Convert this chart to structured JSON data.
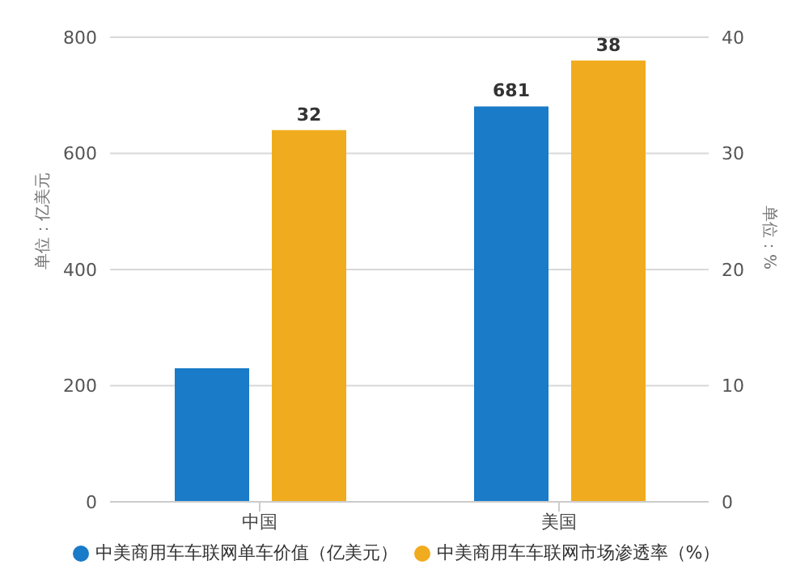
{
  "chart_data": {
    "type": "bar",
    "categories": [
      "中国",
      "美国"
    ],
    "series": [
      {
        "name": "中美商用车车联网单车价值（亿美元）",
        "color": "#1a7bc8",
        "values": [
          230,
          681
        ],
        "value_labels": [
          null,
          "681"
        ]
      },
      {
        "name": "中美商用车车联网市场渗透率（%）",
        "color": "#f0ac1e",
        "values": [
          32,
          38
        ],
        "axis": "y2",
        "value_labels": [
          "32",
          "38"
        ]
      }
    ],
    "ylabel": "单位：亿美元",
    "y2label": "单位：%",
    "ylim": [
      0,
      800
    ],
    "yticks": [
      0,
      200,
      400,
      600,
      800
    ],
    "y2lim": [
      0,
      40
    ],
    "y2ticks": [
      0,
      10,
      20,
      30,
      40
    ],
    "grid": "y",
    "legend": "bottom"
  }
}
